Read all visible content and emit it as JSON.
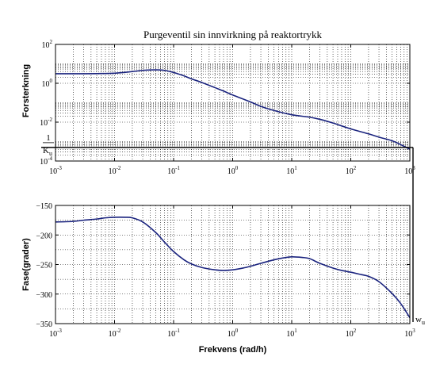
{
  "chart_data": [
    {
      "type": "line",
      "title": "Purgeventil sin innvirkning på reaktortrykk",
      "ylabel": "Forsterkning",
      "xscale": "log",
      "yscale": "log",
      "xlim": [
        0.001,
        1000
      ],
      "ylim": [
        0.0001,
        100
      ],
      "grid": true,
      "x_ticks": [
        {
          "v": 0.001,
          "base": "10",
          "exp": "-3"
        },
        {
          "v": 0.01,
          "base": "10",
          "exp": "-2"
        },
        {
          "v": 0.1,
          "base": "10",
          "exp": "-1"
        },
        {
          "v": 1,
          "base": "10",
          "exp": "0"
        },
        {
          "v": 10,
          "base": "10",
          "exp": "1"
        },
        {
          "v": 100,
          "base": "10",
          "exp": "2"
        },
        {
          "v": 1000,
          "base": "10",
          "exp": "3"
        }
      ],
      "y_ticks": [
        {
          "v": 0.0001,
          "base": "10",
          "exp": "-4"
        },
        {
          "v": 0.01,
          "base": "10",
          "exp": "-2"
        },
        {
          "v": 1,
          "base": "10",
          "exp": "0"
        },
        {
          "v": 100,
          "base": "10",
          "exp": "2"
        }
      ],
      "series": [
        {
          "color": "#1a237e",
          "x": [
            0.001,
            0.002,
            0.005,
            0.01,
            0.02,
            0.03,
            0.05,
            0.07,
            0.1,
            0.15,
            0.2,
            0.3,
            0.5,
            0.7,
            1,
            2,
            3,
            5,
            10,
            20,
            30,
            50,
            100,
            200,
            300,
            500,
            700,
            1000
          ],
          "y": [
            3.1,
            3.1,
            3.15,
            3.3,
            4.0,
            4.6,
            4.9,
            4.6,
            3.6,
            2.4,
            1.7,
            1.1,
            0.6,
            0.4,
            0.25,
            0.11,
            0.065,
            0.04,
            0.024,
            0.018,
            0.014,
            0.009,
            0.0045,
            0.0025,
            0.0017,
            0.0011,
            0.0007,
            0.0004
          ]
        }
      ],
      "annotation": {
        "y": 0.0005,
        "x_end": 1000,
        "frac_num": "1",
        "frac_den": "K",
        "frac_sub": "u"
      }
    },
    {
      "type": "line",
      "xlabel": "Frekvens (rad/h)",
      "ylabel": "Fase(grader)",
      "xscale": "log",
      "xlim": [
        0.001,
        1000
      ],
      "ylim": [
        -350,
        -150
      ],
      "grid": true,
      "x_ticks": [
        {
          "v": 0.001,
          "base": "10",
          "exp": "-3"
        },
        {
          "v": 0.01,
          "base": "10",
          "exp": "-2"
        },
        {
          "v": 0.1,
          "base": "10",
          "exp": "-1"
        },
        {
          "v": 1,
          "base": "10",
          "exp": "0"
        },
        {
          "v": 10,
          "base": "10",
          "exp": "1"
        },
        {
          "v": 100,
          "base": "10",
          "exp": "2"
        },
        {
          "v": 1000,
          "base": "10",
          "exp": "3"
        }
      ],
      "y_ticks": [
        {
          "v": -350,
          "label": "−350"
        },
        {
          "v": -300,
          "label": "−300"
        },
        {
          "v": -250,
          "label": "−250"
        },
        {
          "v": -200,
          "label": "−200"
        },
        {
          "v": -150,
          "label": "−150"
        }
      ],
      "series": [
        {
          "color": "#1a237e",
          "x": [
            0.001,
            0.002,
            0.003,
            0.005,
            0.007,
            0.01,
            0.015,
            0.02,
            0.03,
            0.05,
            0.07,
            0.1,
            0.15,
            0.2,
            0.3,
            0.5,
            0.7,
            1,
            1.5,
            2,
            3,
            5,
            7,
            10,
            15,
            20,
            30,
            50,
            70,
            100,
            150,
            200,
            300,
            500,
            700,
            1000
          ],
          "y": [
            -178,
            -177,
            -175,
            -173,
            -171,
            -170,
            -170,
            -171,
            -178,
            -196,
            -212,
            -228,
            -242,
            -249,
            -255,
            -259,
            -260,
            -259,
            -256,
            -253,
            -248,
            -242,
            -239,
            -237,
            -238,
            -240,
            -248,
            -256,
            -260,
            -263,
            -267,
            -270,
            -279,
            -299,
            -316,
            -340
          ]
        }
      ],
      "annotation": {
        "x": 1000,
        "label": "w",
        "sub": "u"
      }
    }
  ]
}
